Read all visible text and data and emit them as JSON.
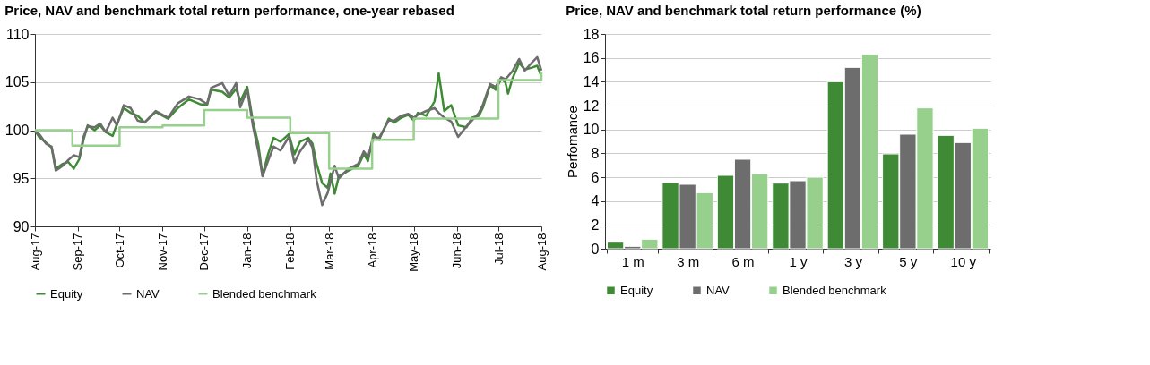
{
  "chart_data": [
    {
      "type": "line",
      "title": "Price, NAV and benchmark total return performance, one-year rebased",
      "xlim": [
        "2017-08-01",
        "2018-08-01"
      ],
      "xticks": [
        {
          "value": "2017-08-01",
          "label": "Aug-17"
        },
        {
          "value": "2017-09-01",
          "label": "Sep-17"
        },
        {
          "value": "2017-10-01",
          "label": "Oct-17"
        },
        {
          "value": "2017-11-01",
          "label": "Nov-17"
        },
        {
          "value": "2017-12-01",
          "label": "Dec-17"
        },
        {
          "value": "2018-01-01",
          "label": "Jan-18"
        },
        {
          "value": "2018-02-01",
          "label": "Feb-18"
        },
        {
          "value": "2018-03-01",
          "label": "Mar-18"
        },
        {
          "value": "2018-04-01",
          "label": "Apr-18"
        },
        {
          "value": "2018-05-01",
          "label": "May-18"
        },
        {
          "value": "2018-06-01",
          "label": "Jun-18"
        },
        {
          "value": "2018-07-01",
          "label": "Jul-18"
        },
        {
          "value": "2018-08-01",
          "label": "Aug-18"
        }
      ],
      "ylim": [
        90,
        110
      ],
      "yticks": [
        90,
        95,
        100,
        105,
        110
      ],
      "grid": "y",
      "legend": "bottom",
      "series": [
        {
          "name": "Equity",
          "color": "#3f8a35",
          "type": "line",
          "x": [
            "2017-08-01",
            "2017-08-04",
            "2017-08-09",
            "2017-08-13",
            "2017-08-16",
            "2017-08-21",
            "2017-08-25",
            "2017-08-29",
            "2017-09-02",
            "2017-09-05",
            "2017-09-08",
            "2017-09-13",
            "2017-09-17",
            "2017-09-21",
            "2017-09-26",
            "2017-09-29",
            "2017-10-04",
            "2017-10-09",
            "2017-10-14",
            "2017-10-19",
            "2017-10-27",
            "2017-11-05",
            "2017-11-12",
            "2017-11-20",
            "2017-11-28",
            "2017-12-03",
            "2017-12-06",
            "2017-12-14",
            "2017-12-19",
            "2017-12-24",
            "2017-12-27",
            "2018-01-01",
            "2018-01-05",
            "2018-01-09",
            "2018-01-12",
            "2018-01-16",
            "2018-01-20",
            "2018-01-25",
            "2018-01-31",
            "2018-02-04",
            "2018-02-08",
            "2018-02-14",
            "2018-02-17",
            "2018-02-20",
            "2018-02-24",
            "2018-02-28",
            "2018-03-02",
            "2018-03-05",
            "2018-03-08",
            "2018-03-15",
            "2018-03-22",
            "2018-03-26",
            "2018-03-29",
            "2018-04-02",
            "2018-04-06",
            "2018-04-13",
            "2018-04-17",
            "2018-04-22",
            "2018-04-27",
            "2018-05-01",
            "2018-05-04",
            "2018-05-10",
            "2018-05-16",
            "2018-05-19",
            "2018-05-23",
            "2018-05-28",
            "2018-06-02",
            "2018-06-08",
            "2018-06-12",
            "2018-06-17",
            "2018-06-20",
            "2018-06-25",
            "2018-06-29",
            "2018-07-03",
            "2018-07-06",
            "2018-07-08",
            "2018-07-11",
            "2018-07-16",
            "2018-07-20",
            "2018-07-25",
            "2018-07-29",
            "2018-08-01"
          ],
          "values": [
            100.0,
            99.3,
            98.7,
            98.2,
            96.0,
            96.5,
            96.7,
            96.0,
            97.0,
            99.0,
            100.5,
            100.0,
            100.5,
            99.8,
            99.4,
            100.6,
            102.3,
            101.8,
            101.5,
            100.8,
            101.9,
            101.2,
            102.3,
            103.2,
            102.7,
            102.6,
            104.2,
            104.0,
            103.4,
            104.3,
            103.0,
            104.5,
            101.0,
            98.5,
            95.3,
            97.5,
            99.2,
            98.8,
            99.6,
            97.5,
            98.8,
            99.2,
            98.6,
            96.5,
            94.5,
            94.0,
            95.5,
            93.4,
            95.2,
            95.8,
            96.3,
            97.5,
            96.8,
            99.6,
            99.0,
            101.2,
            100.8,
            101.3,
            101.6,
            101.0,
            101.8,
            101.5,
            103.0,
            105.9,
            102.0,
            102.6,
            100.5,
            100.3,
            101.3,
            101.5,
            102.4,
            104.7,
            104.2,
            105.3,
            105.0,
            103.8,
            105.3,
            107.0,
            106.3,
            106.5,
            106.7,
            105.6
          ]
        },
        {
          "name": "NAV",
          "color": "#6d6d6d",
          "type": "line",
          "x": [
            "2017-08-01",
            "2017-08-04",
            "2017-08-09",
            "2017-08-13",
            "2017-08-16",
            "2017-08-21",
            "2017-08-25",
            "2017-08-29",
            "2017-09-02",
            "2017-09-05",
            "2017-09-08",
            "2017-09-13",
            "2017-09-17",
            "2017-09-21",
            "2017-09-26",
            "2017-09-29",
            "2017-10-04",
            "2017-10-09",
            "2017-10-14",
            "2017-10-19",
            "2017-10-27",
            "2017-11-05",
            "2017-11-12",
            "2017-11-20",
            "2017-11-28",
            "2017-12-03",
            "2017-12-06",
            "2017-12-14",
            "2017-12-19",
            "2017-12-24",
            "2017-12-27",
            "2018-01-01",
            "2018-01-05",
            "2018-01-09",
            "2018-01-12",
            "2018-01-16",
            "2018-01-20",
            "2018-01-25",
            "2018-01-31",
            "2018-02-04",
            "2018-02-08",
            "2018-02-14",
            "2018-02-17",
            "2018-02-20",
            "2018-02-24",
            "2018-02-28",
            "2018-03-02",
            "2018-03-05",
            "2018-03-08",
            "2018-03-15",
            "2018-03-22",
            "2018-03-26",
            "2018-03-29",
            "2018-04-02",
            "2018-04-06",
            "2018-04-13",
            "2018-04-17",
            "2018-04-22",
            "2018-04-27",
            "2018-05-01",
            "2018-05-04",
            "2018-05-10",
            "2018-05-16",
            "2018-05-19",
            "2018-05-23",
            "2018-05-28",
            "2018-06-02",
            "2018-06-08",
            "2018-06-12",
            "2018-06-17",
            "2018-06-20",
            "2018-06-25",
            "2018-06-29",
            "2018-07-03",
            "2018-07-06",
            "2018-07-08",
            "2018-07-11",
            "2018-07-16",
            "2018-07-20",
            "2018-07-25",
            "2018-07-29",
            "2018-08-01"
          ],
          "values": [
            99.8,
            99.6,
            98.6,
            98.3,
            95.8,
            96.3,
            96.9,
            97.4,
            97.2,
            99.3,
            100.4,
            100.3,
            100.7,
            99.8,
            101.3,
            100.5,
            102.6,
            102.3,
            101.0,
            100.8,
            102.0,
            101.3,
            102.8,
            103.5,
            103.2,
            102.7,
            104.4,
            104.9,
            103.6,
            104.9,
            102.4,
            104.2,
            100.5,
            97.8,
            95.2,
            96.8,
            98.3,
            97.9,
            99.3,
            96.6,
            97.8,
            99.0,
            98.2,
            94.8,
            92.2,
            93.5,
            94.6,
            96.3,
            95.0,
            96.0,
            96.5,
            97.8,
            97.2,
            99.3,
            99.2,
            101.0,
            101.0,
            101.5,
            101.7,
            101.3,
            101.6,
            102.0,
            102.3,
            101.8,
            101.3,
            100.9,
            99.3,
            100.4,
            101.0,
            101.8,
            102.7,
            104.8,
            104.5,
            105.5,
            105.3,
            105.6,
            106.1,
            107.4,
            106.2,
            107.0,
            107.6,
            106.2
          ]
        },
        {
          "name": "Blended benchmark",
          "color": "#96d08c",
          "type": "step",
          "x": [
            "2017-08-01",
            "2017-08-28",
            "2017-10-01",
            "2017-11-01",
            "2017-12-01",
            "2018-01-01",
            "2018-02-01",
            "2018-03-01",
            "2018-04-01",
            "2018-05-01",
            "2018-07-01",
            "2018-08-01"
          ],
          "values": [
            100.0,
            98.4,
            100.3,
            100.5,
            102.1,
            101.3,
            99.7,
            96.0,
            99.0,
            101.2,
            105.2,
            106.0
          ]
        }
      ]
    },
    {
      "type": "bar",
      "title": "Price, NAV and benchmark total return performance (%)",
      "ylabel": "Perfomance",
      "categories": [
        "1 m",
        "3 m",
        "6 m",
        "1 y",
        "3 y",
        "5 y",
        "10 y"
      ],
      "ylim": [
        0,
        18
      ],
      "yticks": [
        0,
        2,
        4,
        6,
        8,
        10,
        12,
        14,
        16,
        18
      ],
      "grid": "y",
      "legend": "bottom",
      "series": [
        {
          "name": "Equity",
          "color": "#3f8a35",
          "values": [
            0.55,
            5.55,
            6.15,
            5.5,
            14.0,
            7.95,
            9.5
          ]
        },
        {
          "name": "NAV",
          "color": "#6d6d6d",
          "values": [
            0.2,
            5.4,
            7.5,
            5.7,
            15.2,
            9.6,
            8.9
          ]
        },
        {
          "name": "Blended benchmark",
          "color": "#96d08c",
          "values": [
            0.8,
            4.7,
            6.3,
            6.0,
            16.3,
            11.8,
            10.1
          ]
        }
      ]
    }
  ]
}
